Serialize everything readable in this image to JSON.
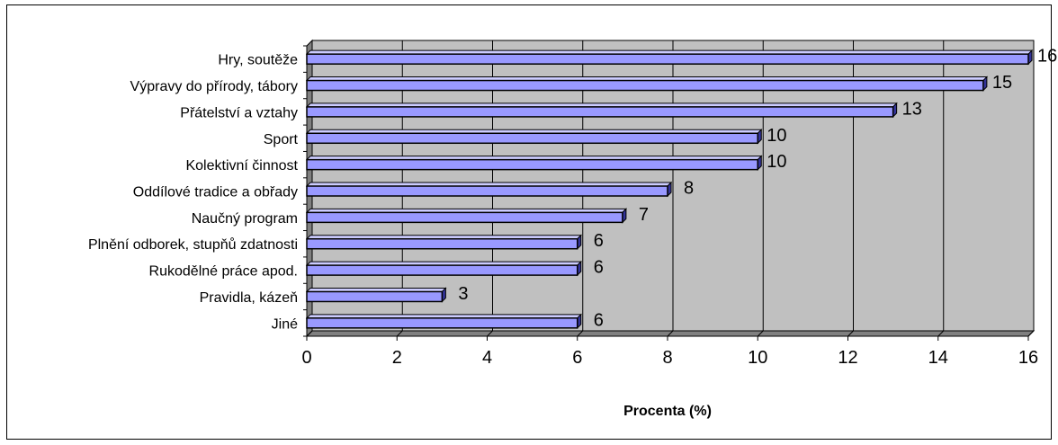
{
  "chart_data": {
    "type": "bar",
    "orientation": "horizontal",
    "categories": [
      "Hry, soutěže",
      "Výpravy do přírody, tábory",
      "Přátelství a vztahy",
      "Sport",
      "Kolektivní činnost",
      "Oddílové tradice a obřady",
      "Naučný program",
      "Plnění odborek, stupňů zdatnosti",
      "Rukodělné práce apod.",
      "Pravidla, kázeň",
      "Jiné"
    ],
    "values": [
      16,
      15,
      13,
      10,
      10,
      8,
      7,
      6,
      6,
      3,
      6
    ],
    "data_labels": [
      "16",
      "15",
      "13",
      "10",
      "10",
      "8",
      "7",
      "6",
      "6",
      "3",
      "6"
    ],
    "title": "",
    "xlabel": "Procenta (%)",
    "ylabel": "",
    "xlim": [
      0,
      16
    ],
    "x_ticks": [
      0,
      2,
      4,
      6,
      8,
      10,
      12,
      14,
      16
    ],
    "x_tick_labels": [
      "0",
      "2",
      "4",
      "6",
      "8",
      "10",
      "12",
      "14",
      "16"
    ],
    "grid": true,
    "style_3d": true,
    "colors": {
      "bar_face": "#9999ff",
      "bar_side": "#333399",
      "bar_top": "#ccccff",
      "plot_wall": "#c0c0c0",
      "plot_floor": "#808080",
      "gridline": "#000000"
    }
  }
}
